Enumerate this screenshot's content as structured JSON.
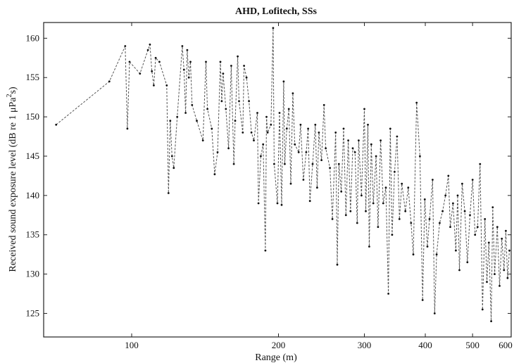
{
  "chart_data": {
    "type": "line",
    "title": "AHD, Lofitech, SSs",
    "xlabel": "Range (m)",
    "ylabel_parts": [
      "Received sound exposure level (dB re 1 μPa",
      "2",
      "s)"
    ],
    "x_scale": "log",
    "xlim": [
      66,
      600
    ],
    "ylim": [
      122,
      162
    ],
    "x_ticks": [
      100,
      200,
      300,
      400,
      500,
      600
    ],
    "x_tick_labels": [
      "100",
      "200",
      "300",
      "400",
      "500",
      "600"
    ],
    "y_ticks": [
      125,
      130,
      135,
      140,
      145,
      150,
      155,
      160
    ],
    "y_tick_labels": [
      "125",
      "130",
      "135",
      "140",
      "145",
      "150",
      "155",
      "160"
    ],
    "grid": false,
    "series": [
      {
        "style": "dashed-with-point-markers",
        "color": "#555555",
        "points": [
          [
            70,
            149
          ],
          [
            90,
            154.5
          ],
          [
            97,
            159
          ],
          [
            98,
            148.5
          ],
          [
            99,
            157
          ],
          [
            104,
            155.5
          ],
          [
            108,
            158.5
          ],
          [
            109,
            159.2
          ],
          [
            110,
            155.8
          ],
          [
            111,
            154
          ],
          [
            112,
            157.5
          ],
          [
            114,
            157
          ],
          [
            118,
            154
          ],
          [
            119,
            140.3
          ],
          [
            120,
            149.5
          ],
          [
            121,
            145
          ],
          [
            122,
            143.5
          ],
          [
            124,
            150
          ],
          [
            127,
            159
          ],
          [
            128,
            156
          ],
          [
            129,
            150.5
          ],
          [
            130,
            158.5
          ],
          [
            131,
            155
          ],
          [
            132,
            157
          ],
          [
            133,
            151.5
          ],
          [
            136,
            149.5
          ],
          [
            140,
            147
          ],
          [
            142,
            157
          ],
          [
            143,
            151
          ],
          [
            146,
            148.5
          ],
          [
            148,
            142.7
          ],
          [
            150,
            145.5
          ],
          [
            152,
            157
          ],
          [
            153,
            152
          ],
          [
            154,
            155.5
          ],
          [
            156,
            151
          ],
          [
            158,
            146
          ],
          [
            160,
            156.5
          ],
          [
            162,
            144
          ],
          [
            163,
            149.5
          ],
          [
            165,
            157.7
          ],
          [
            166,
            152
          ],
          [
            169,
            148
          ],
          [
            170,
            156.5
          ],
          [
            172,
            155
          ],
          [
            174,
            152
          ],
          [
            176,
            148
          ],
          [
            178,
            147
          ],
          [
            181,
            150.5
          ],
          [
            182,
            139
          ],
          [
            184,
            145
          ],
          [
            186,
            146.5
          ],
          [
            188,
            133
          ],
          [
            189,
            150
          ],
          [
            190,
            148
          ],
          [
            193,
            149
          ],
          [
            195,
            161.3
          ],
          [
            196,
            144
          ],
          [
            199,
            139
          ],
          [
            201,
            150.5
          ],
          [
            203,
            138.8
          ],
          [
            205,
            154.5
          ],
          [
            206,
            144
          ],
          [
            208,
            148.5
          ],
          [
            210,
            151
          ],
          [
            212,
            141.5
          ],
          [
            214,
            153
          ],
          [
            216,
            146.5
          ],
          [
            220,
            145.5
          ],
          [
            222,
            149
          ],
          [
            225,
            142
          ],
          [
            228,
            145.5
          ],
          [
            230,
            148.5
          ],
          [
            232,
            139.3
          ],
          [
            235,
            144
          ],
          [
            238,
            149
          ],
          [
            240,
            141
          ],
          [
            242,
            148
          ],
          [
            245,
            144.5
          ],
          [
            248,
            151.5
          ],
          [
            250,
            146
          ],
          [
            255,
            143.5
          ],
          [
            258,
            137
          ],
          [
            262,
            148
          ],
          [
            264,
            131.2
          ],
          [
            266,
            144
          ],
          [
            269,
            140.5
          ],
          [
            272,
            148.5
          ],
          [
            275,
            137.5
          ],
          [
            278,
            147
          ],
          [
            281,
            138
          ],
          [
            284,
            146
          ],
          [
            287,
            145.5
          ],
          [
            290,
            136.5
          ],
          [
            292,
            147
          ],
          [
            296,
            140
          ],
          [
            300,
            151
          ],
          [
            302,
            138
          ],
          [
            305,
            149
          ],
          [
            307,
            133.5
          ],
          [
            310,
            146.5
          ],
          [
            313,
            139
          ],
          [
            317,
            145
          ],
          [
            320,
            136
          ],
          [
            324,
            147
          ],
          [
            328,
            139
          ],
          [
            332,
            141
          ],
          [
            336,
            127.5
          ],
          [
            339,
            148.5
          ],
          [
            342,
            135
          ],
          [
            346,
            143
          ],
          [
            350,
            147.5
          ],
          [
            354,
            137
          ],
          [
            358,
            141.5
          ],
          [
            364,
            138
          ],
          [
            369,
            141
          ],
          [
            374,
            136.5
          ],
          [
            378,
            132.5
          ],
          [
            384,
            151.8
          ],
          [
            390,
            145
          ],
          [
            395,
            126.7
          ],
          [
            399,
            139.5
          ],
          [
            404,
            133.5
          ],
          [
            408,
            137
          ],
          [
            414,
            142
          ],
          [
            418,
            125
          ],
          [
            422,
            132.5
          ],
          [
            428,
            136.5
          ],
          [
            434,
            138
          ],
          [
            440,
            140
          ],
          [
            446,
            142.5
          ],
          [
            450,
            136
          ],
          [
            456,
            139
          ],
          [
            462,
            133
          ],
          [
            466,
            140
          ],
          [
            470,
            130.5
          ],
          [
            476,
            141.5
          ],
          [
            482,
            138
          ],
          [
            488,
            131.5
          ],
          [
            494,
            137.5
          ],
          [
            500,
            142
          ],
          [
            506,
            135
          ],
          [
            512,
            136
          ],
          [
            518,
            144
          ],
          [
            524,
            125.5
          ],
          [
            530,
            137
          ],
          [
            535,
            129
          ],
          [
            540,
            134
          ],
          [
            546,
            124
          ],
          [
            550,
            138.5
          ],
          [
            555,
            130
          ],
          [
            562,
            136
          ],
          [
            568,
            128.5
          ],
          [
            574,
            134.5
          ],
          [
            580,
            130.5
          ],
          [
            585,
            135.5
          ],
          [
            590,
            129.5
          ],
          [
            595,
            133
          ]
        ]
      }
    ]
  }
}
